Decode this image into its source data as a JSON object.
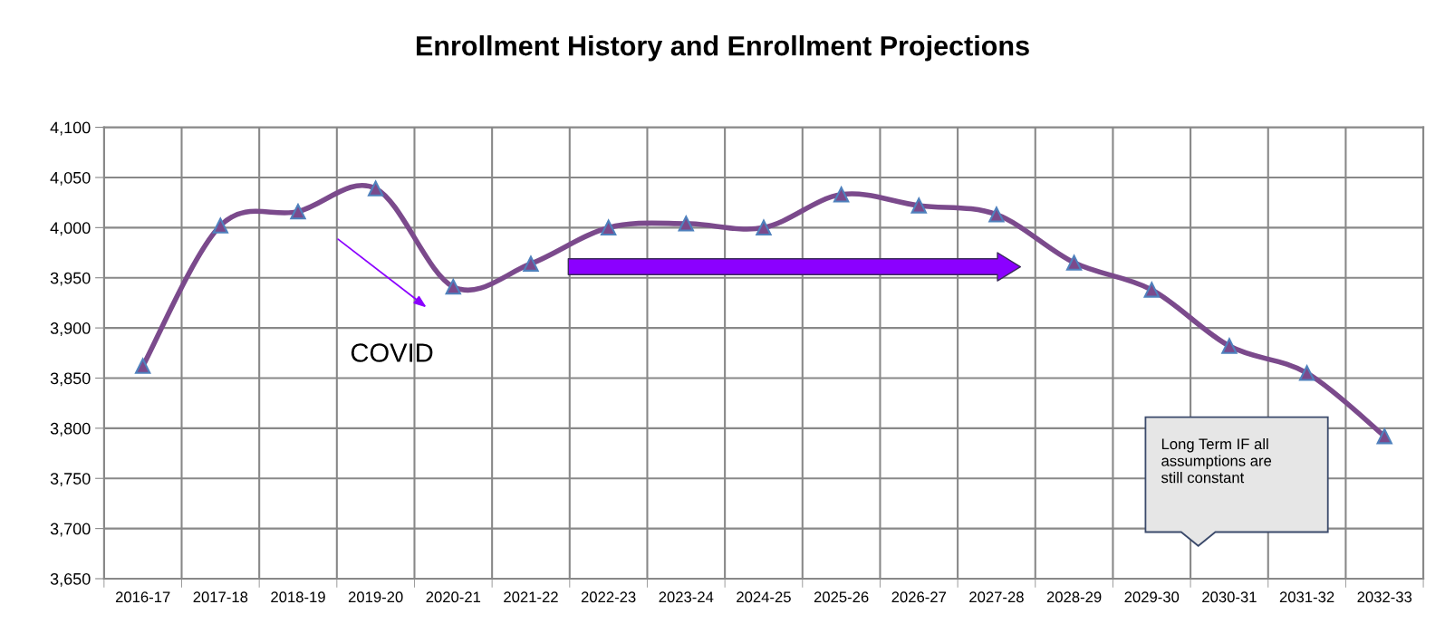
{
  "chart_data": {
    "type": "line",
    "title": "Enrollment History and Enrollment Projections",
    "categories": [
      "2016-17",
      "2017-18",
      "2018-19",
      "2019-20",
      "2020-21",
      "2021-22",
      "2022-23",
      "2023-24",
      "2024-25",
      "2025-26",
      "2026-27",
      "2027-28",
      "2028-29",
      "2029-30",
      "2030-31",
      "2031-32",
      "2032-33"
    ],
    "series": [
      {
        "color": "#7b4a8c",
        "values": [
          3862,
          4002,
          4016,
          4039,
          3941,
          3964,
          4000,
          4004,
          4000,
          4033,
          4022,
          4013,
          3965,
          3938,
          3882,
          3855,
          3792
        ]
      }
    ],
    "ylim": [
      3650,
      4100
    ],
    "yticks": [
      {
        "value": 3650,
        "label": "3,650"
      },
      {
        "value": 3700,
        "label": "3,700"
      },
      {
        "value": 3750,
        "label": "3,750"
      },
      {
        "value": 3800,
        "label": "3,800"
      },
      {
        "value": 3850,
        "label": "3,850"
      },
      {
        "value": 3900,
        "label": "3,900"
      },
      {
        "value": 3950,
        "label": "3,950"
      },
      {
        "value": 4000,
        "label": "4,000"
      },
      {
        "value": 4050,
        "label": "4,050"
      },
      {
        "value": 4100,
        "label": "4,100"
      }
    ],
    "grid": true,
    "marker": "triangle",
    "line_style": "solid",
    "annotations": [
      "COVID",
      "Long Term IF all\nassumptions are\nstill constant"
    ]
  }
}
